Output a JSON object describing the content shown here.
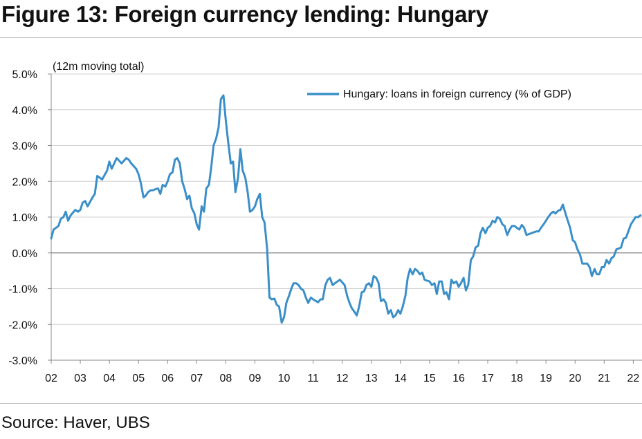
{
  "figure": {
    "title": "Figure 13: Foreign currency lending: Hungary",
    "source": "Source: Haver, UBS",
    "axis_note": "(12m moving total)"
  },
  "colors": {
    "series": "#3a8fc8",
    "grid": "#d0d0d0",
    "zero": "#9a9a9a",
    "axis": "#888888"
  },
  "chart_data": {
    "type": "line",
    "title": "Figure 13: Foreign currency lending: Hungary",
    "ylabel": "(12m moving total)",
    "ylim": [
      -3.0,
      5.0
    ],
    "yticks": [
      -3.0,
      -2.0,
      -1.0,
      0.0,
      1.0,
      2.0,
      3.0,
      4.0,
      5.0
    ],
    "ytick_labels": [
      "-3.0%",
      "-2.0%",
      "-1.0%",
      "0.0%",
      "1.0%",
      "2.0%",
      "3.0%",
      "4.0%",
      "5.0%"
    ],
    "xlim": [
      2002.0,
      2022.3
    ],
    "xticks": [
      2002,
      2003,
      2004,
      2005,
      2006,
      2007,
      2008,
      2009,
      2010,
      2011,
      2012,
      2013,
      2014,
      2015,
      2016,
      2017,
      2018,
      2019,
      2020,
      2021,
      2022
    ],
    "xtick_labels": [
      "02",
      "03",
      "04",
      "05",
      "06",
      "07",
      "08",
      "09",
      "10",
      "11",
      "12",
      "13",
      "14",
      "15",
      "16",
      "17",
      "18",
      "19",
      "20",
      "21",
      "22"
    ],
    "grid": "horizontal",
    "legend": "top-right",
    "series": [
      {
        "name": "Hungary: loans in foreign currency (% of GDP)",
        "points": [
          [
            2002.0,
            0.4
          ],
          [
            2002.08,
            0.65
          ],
          [
            2002.25,
            0.75
          ],
          [
            2002.33,
            0.95
          ],
          [
            2002.42,
            1.0
          ],
          [
            2002.5,
            1.15
          ],
          [
            2002.58,
            0.9
          ],
          [
            2002.67,
            1.05
          ],
          [
            2002.83,
            1.2
          ],
          [
            2002.92,
            1.15
          ],
          [
            2003.0,
            1.2
          ],
          [
            2003.08,
            1.4
          ],
          [
            2003.17,
            1.45
          ],
          [
            2003.25,
            1.3
          ],
          [
            2003.42,
            1.55
          ],
          [
            2003.5,
            1.65
          ],
          [
            2003.58,
            2.15
          ],
          [
            2003.67,
            2.1
          ],
          [
            2003.75,
            2.05
          ],
          [
            2003.92,
            2.3
          ],
          [
            2004.0,
            2.55
          ],
          [
            2004.08,
            2.35
          ],
          [
            2004.25,
            2.65
          ],
          [
            2004.42,
            2.5
          ],
          [
            2004.58,
            2.65
          ],
          [
            2004.67,
            2.6
          ],
          [
            2004.75,
            2.5
          ],
          [
            2004.92,
            2.35
          ],
          [
            2005.0,
            2.2
          ],
          [
            2005.08,
            1.95
          ],
          [
            2005.17,
            1.55
          ],
          [
            2005.25,
            1.6
          ],
          [
            2005.33,
            1.7
          ],
          [
            2005.42,
            1.75
          ],
          [
            2005.5,
            1.75
          ],
          [
            2005.58,
            1.78
          ],
          [
            2005.67,
            1.8
          ],
          [
            2005.75,
            1.65
          ],
          [
            2005.83,
            1.9
          ],
          [
            2005.92,
            1.85
          ],
          [
            2006.0,
            2.0
          ],
          [
            2006.08,
            2.2
          ],
          [
            2006.17,
            2.25
          ],
          [
            2006.25,
            2.6
          ],
          [
            2006.33,
            2.65
          ],
          [
            2006.42,
            2.5
          ],
          [
            2006.5,
            2.0
          ],
          [
            2006.58,
            1.8
          ],
          [
            2006.67,
            1.5
          ],
          [
            2006.75,
            1.6
          ],
          [
            2006.83,
            1.25
          ],
          [
            2006.92,
            1.1
          ],
          [
            2007.0,
            0.8
          ],
          [
            2007.08,
            0.65
          ],
          [
            2007.17,
            1.3
          ],
          [
            2007.25,
            1.15
          ],
          [
            2007.33,
            1.8
          ],
          [
            2007.42,
            1.9
          ],
          [
            2007.5,
            2.4
          ],
          [
            2007.58,
            3.0
          ],
          [
            2007.67,
            3.2
          ],
          [
            2007.75,
            3.5
          ],
          [
            2007.83,
            4.3
          ],
          [
            2007.92,
            4.4
          ],
          [
            2008.0,
            3.7
          ],
          [
            2008.08,
            3.1
          ],
          [
            2008.17,
            2.5
          ],
          [
            2008.25,
            2.55
          ],
          [
            2008.33,
            1.7
          ],
          [
            2008.42,
            2.1
          ],
          [
            2008.5,
            2.9
          ],
          [
            2008.58,
            2.3
          ],
          [
            2008.67,
            2.1
          ],
          [
            2008.75,
            1.7
          ],
          [
            2008.83,
            1.15
          ],
          [
            2008.92,
            1.2
          ],
          [
            2009.0,
            1.3
          ],
          [
            2009.08,
            1.5
          ],
          [
            2009.17,
            1.65
          ],
          [
            2009.25,
            1.0
          ],
          [
            2009.33,
            0.85
          ],
          [
            2009.42,
            0.1
          ],
          [
            2009.5,
            -1.25
          ],
          [
            2009.58,
            -1.3
          ],
          [
            2009.67,
            -1.28
          ],
          [
            2009.75,
            -1.45
          ],
          [
            2009.83,
            -1.5
          ],
          [
            2009.92,
            -1.95
          ],
          [
            2010.0,
            -1.8
          ],
          [
            2010.08,
            -1.4
          ],
          [
            2010.17,
            -1.2
          ],
          [
            2010.25,
            -1.0
          ],
          [
            2010.33,
            -0.85
          ],
          [
            2010.42,
            -0.85
          ],
          [
            2010.5,
            -0.9
          ],
          [
            2010.58,
            -1.0
          ],
          [
            2010.67,
            -1.05
          ],
          [
            2010.75,
            -1.25
          ],
          [
            2010.83,
            -1.4
          ],
          [
            2010.92,
            -1.25
          ],
          [
            2011.0,
            -1.3
          ],
          [
            2011.17,
            -1.38
          ],
          [
            2011.25,
            -1.3
          ],
          [
            2011.33,
            -1.3
          ],
          [
            2011.42,
            -0.9
          ],
          [
            2011.5,
            -0.75
          ],
          [
            2011.58,
            -0.7
          ],
          [
            2011.67,
            -0.9
          ],
          [
            2011.75,
            -0.85
          ],
          [
            2011.92,
            -0.75
          ],
          [
            2012.08,
            -0.9
          ],
          [
            2012.17,
            -1.2
          ],
          [
            2012.25,
            -1.4
          ],
          [
            2012.33,
            -1.55
          ],
          [
            2012.42,
            -1.65
          ],
          [
            2012.5,
            -1.75
          ],
          [
            2012.58,
            -1.5
          ],
          [
            2012.67,
            -1.1
          ],
          [
            2012.75,
            -1.08
          ],
          [
            2012.83,
            -0.9
          ],
          [
            2012.92,
            -0.85
          ],
          [
            2013.0,
            -0.95
          ],
          [
            2013.08,
            -0.65
          ],
          [
            2013.17,
            -0.7
          ],
          [
            2013.25,
            -0.85
          ],
          [
            2013.33,
            -1.35
          ],
          [
            2013.42,
            -1.3
          ],
          [
            2013.5,
            -1.4
          ],
          [
            2013.58,
            -1.7
          ],
          [
            2013.67,
            -1.6
          ],
          [
            2013.75,
            -1.8
          ],
          [
            2013.83,
            -1.75
          ],
          [
            2013.92,
            -1.6
          ],
          [
            2014.0,
            -1.7
          ],
          [
            2014.08,
            -1.5
          ],
          [
            2014.17,
            -1.2
          ],
          [
            2014.25,
            -0.7
          ],
          [
            2014.33,
            -0.45
          ],
          [
            2014.42,
            -0.6
          ],
          [
            2014.5,
            -0.45
          ],
          [
            2014.58,
            -0.5
          ],
          [
            2014.67,
            -0.6
          ],
          [
            2014.75,
            -0.55
          ],
          [
            2014.83,
            -0.75
          ],
          [
            2014.92,
            -0.78
          ],
          [
            2015.0,
            -0.8
          ],
          [
            2015.08,
            -0.9
          ],
          [
            2015.17,
            -0.85
          ],
          [
            2015.25,
            -1.15
          ],
          [
            2015.33,
            -0.8
          ],
          [
            2015.42,
            -0.8
          ],
          [
            2015.5,
            -1.15
          ],
          [
            2015.58,
            -1.1
          ],
          [
            2015.67,
            -1.3
          ],
          [
            2015.75,
            -0.75
          ],
          [
            2015.83,
            -0.85
          ],
          [
            2015.92,
            -0.8
          ],
          [
            2016.0,
            -0.95
          ],
          [
            2016.08,
            -0.85
          ],
          [
            2016.17,
            -0.7
          ],
          [
            2016.25,
            -1.05
          ],
          [
            2016.33,
            -0.9
          ],
          [
            2016.42,
            -0.2
          ],
          [
            2016.5,
            -0.1
          ],
          [
            2016.58,
            0.15
          ],
          [
            2016.67,
            0.2
          ],
          [
            2016.75,
            0.55
          ],
          [
            2016.83,
            0.7
          ],
          [
            2016.92,
            0.55
          ],
          [
            2017.0,
            0.7
          ],
          [
            2017.08,
            0.75
          ],
          [
            2017.17,
            0.9
          ],
          [
            2017.25,
            0.85
          ],
          [
            2017.33,
            1.0
          ],
          [
            2017.42,
            0.95
          ],
          [
            2017.5,
            0.8
          ],
          [
            2017.58,
            0.75
          ],
          [
            2017.67,
            0.5
          ],
          [
            2017.75,
            0.65
          ],
          [
            2017.83,
            0.75
          ],
          [
            2017.92,
            0.75
          ],
          [
            2018.0,
            0.7
          ],
          [
            2018.08,
            0.65
          ],
          [
            2018.17,
            0.78
          ],
          [
            2018.25,
            0.7
          ],
          [
            2018.33,
            0.5
          ],
          [
            2018.5,
            0.55
          ],
          [
            2018.67,
            0.6
          ],
          [
            2018.75,
            0.6
          ],
          [
            2018.83,
            0.7
          ],
          [
            2018.92,
            0.8
          ],
          [
            2019.0,
            0.9
          ],
          [
            2019.08,
            1.0
          ],
          [
            2019.17,
            1.1
          ],
          [
            2019.25,
            1.15
          ],
          [
            2019.33,
            1.1
          ],
          [
            2019.42,
            1.18
          ],
          [
            2019.5,
            1.2
          ],
          [
            2019.58,
            1.35
          ],
          [
            2019.67,
            1.1
          ],
          [
            2019.75,
            0.9
          ],
          [
            2019.83,
            0.7
          ],
          [
            2019.92,
            0.35
          ],
          [
            2020.0,
            0.3
          ],
          [
            2020.08,
            0.1
          ],
          [
            2020.17,
            -0.05
          ],
          [
            2020.25,
            -0.3
          ],
          [
            2020.33,
            -0.3
          ],
          [
            2020.42,
            -0.3
          ],
          [
            2020.5,
            -0.4
          ],
          [
            2020.58,
            -0.65
          ],
          [
            2020.67,
            -0.45
          ],
          [
            2020.75,
            -0.6
          ],
          [
            2020.83,
            -0.6
          ],
          [
            2020.92,
            -0.4
          ],
          [
            2021.0,
            -0.4
          ],
          [
            2021.08,
            -0.2
          ],
          [
            2021.17,
            -0.3
          ],
          [
            2021.25,
            -0.15
          ],
          [
            2021.33,
            -0.1
          ],
          [
            2021.42,
            0.1
          ],
          [
            2021.5,
            0.12
          ],
          [
            2021.58,
            0.15
          ],
          [
            2021.67,
            0.4
          ],
          [
            2021.75,
            0.42
          ],
          [
            2021.83,
            0.6
          ],
          [
            2021.92,
            0.8
          ],
          [
            2022.0,
            0.9
          ],
          [
            2022.08,
            1.0
          ],
          [
            2022.17,
            1.0
          ],
          [
            2022.25,
            1.05
          ]
        ]
      }
    ]
  }
}
